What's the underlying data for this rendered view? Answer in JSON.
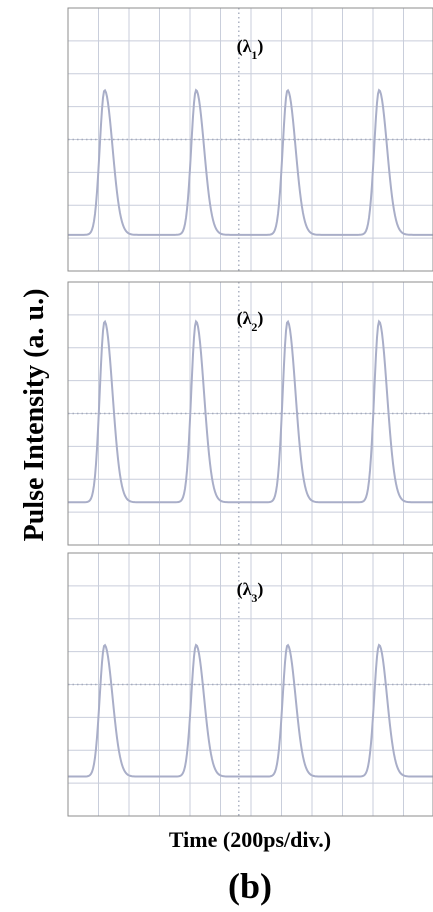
{
  "figure": {
    "ylabel": "Pulse Intensity (a. u.)",
    "xlabel": "Time (200ps/div.)",
    "panel_label": "(b)"
  },
  "colors": {
    "grid": "#c9cedb",
    "center_dots": "#a6acbd",
    "trace": "#a9aec8",
    "frame": "#8e8e8e"
  },
  "chart_data": [
    {
      "type": "line",
      "title": "(λ1)",
      "wavelength_index": "1",
      "xlabel": "Time (200ps/div.)",
      "ylabel": "Pulse Intensity (a. u.)",
      "x_divisions": 10,
      "y_divisions": 8,
      "grid": true,
      "series": [
        {
          "peaks_div": [
            1.2,
            4.2,
            7.2,
            10.2
          ],
          "peak_level_div": 5.5,
          "baseline_div": 1.1
        }
      ]
    },
    {
      "type": "line",
      "title": "(λ2)",
      "wavelength_index": "2",
      "xlabel": "Time (200ps/div.)",
      "ylabel": "Pulse Intensity (a. u.)",
      "x_divisions": 10,
      "y_divisions": 8,
      "grid": true,
      "series": [
        {
          "peaks_div": [
            1.2,
            4.2,
            7.2,
            10.2
          ],
          "peak_level_div": 6.8,
          "baseline_div": 1.3
        }
      ]
    },
    {
      "type": "line",
      "title": "(λ3)",
      "wavelength_index": "3",
      "xlabel": "Time (200ps/div.)",
      "ylabel": "Pulse Intensity (a. u.)",
      "x_divisions": 10,
      "y_divisions": 8,
      "grid": true,
      "series": [
        {
          "peaks_div": [
            1.2,
            4.2,
            7.2,
            10.2
          ],
          "peak_level_div": 5.2,
          "baseline_div": 1.2
        }
      ]
    }
  ]
}
